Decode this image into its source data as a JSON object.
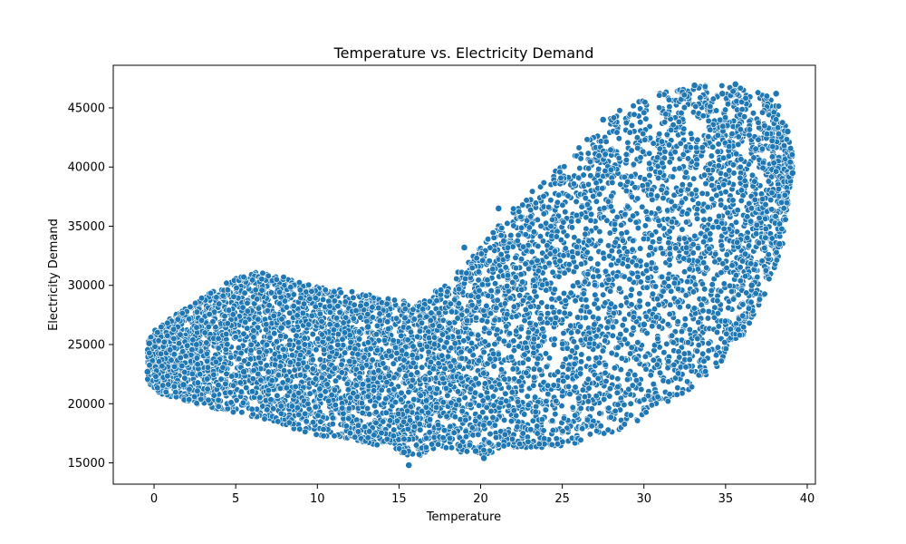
{
  "chart_data": {
    "type": "scatter",
    "title": "Temperature vs. Electricity Demand",
    "xlabel": "Temperature",
    "ylabel": "Electricity Demand",
    "xlim": [
      -2.5,
      40.5
    ],
    "ylim": [
      13200,
      48600
    ],
    "xticks": [
      0,
      5,
      10,
      15,
      20,
      25,
      30,
      35,
      40
    ],
    "yticks": [
      15000,
      20000,
      25000,
      30000,
      35000,
      40000,
      45000
    ],
    "grid": false,
    "legend": "none",
    "marker_color": "#1f77b4",
    "marker_edge_color": "#ffffff",
    "density_profile": {
      "x": [
        -0.4,
        0,
        2,
        4,
        6,
        8,
        10,
        12,
        14,
        16,
        18,
        20,
        22,
        24,
        26,
        28,
        30,
        32,
        34,
        36,
        37.5,
        38.5,
        39.1
      ],
      "lower": [
        22000,
        21000,
        20200,
        19500,
        18900,
        18100,
        17300,
        17000,
        16400,
        15400,
        16100,
        15600,
        16200,
        16300,
        16600,
        17500,
        18800,
        20600,
        22200,
        25500,
        29500,
        33500,
        40000
      ],
      "upper": [
        25200,
        26200,
        28200,
        30000,
        31200,
        30700,
        29900,
        29500,
        29000,
        28500,
        30200,
        33200,
        36600,
        39000,
        41600,
        44400,
        45900,
        46700,
        47000,
        46800,
        46200,
        44800,
        41000
      ]
    },
    "highlight_points": [
      {
        "x": -0.4,
        "y": 22700
      },
      {
        "x": -0.3,
        "y": 25100
      },
      {
        "x": 1.8,
        "y": 21600
      },
      {
        "x": 5.5,
        "y": 22700
      },
      {
        "x": 7.8,
        "y": 26400
      },
      {
        "x": 10.4,
        "y": 23100
      },
      {
        "x": 13.1,
        "y": 26500
      },
      {
        "x": 15.3,
        "y": 15900
      },
      {
        "x": 15.6,
        "y": 14800
      },
      {
        "x": 19.0,
        "y": 33200
      },
      {
        "x": 19.7,
        "y": 16000
      },
      {
        "x": 20.2,
        "y": 15400
      },
      {
        "x": 21.1,
        "y": 36500
      },
      {
        "x": 27.5,
        "y": 44000
      },
      {
        "x": 30.0,
        "y": 26700
      },
      {
        "x": 30.4,
        "y": 33200
      },
      {
        "x": 33.1,
        "y": 46900
      },
      {
        "x": 34.8,
        "y": 46200
      },
      {
        "x": 35.6,
        "y": 47000
      },
      {
        "x": 38.1,
        "y": 46200
      },
      {
        "x": 38.8,
        "y": 43000
      },
      {
        "x": 39.1,
        "y": 39500
      },
      {
        "x": 38.3,
        "y": 33500
      },
      {
        "x": 36.6,
        "y": 30000
      }
    ]
  }
}
